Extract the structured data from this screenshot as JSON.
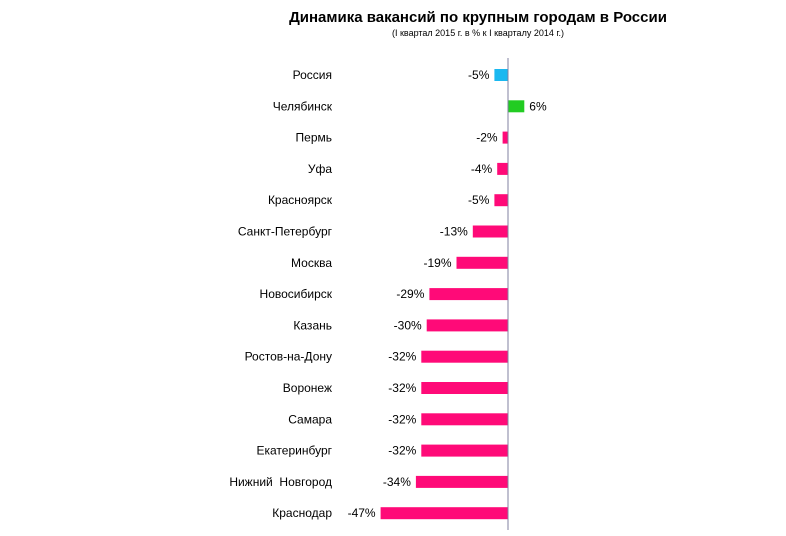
{
  "chart_data": {
    "type": "bar",
    "orientation": "horizontal",
    "title": "Динамика вакансий по крупным городам в России",
    "subtitle": "(I квартал 2015 г. в % к I кварталу 2014 г.)",
    "categories": [
      "Россия",
      "Челябинск",
      "Пермь",
      "Уфа",
      "Красноярск",
      "Санкт-Петербург",
      "Москва",
      "Новосибирск",
      "Казань",
      "Ростов-на-Дону",
      "Воронеж",
      "Самара",
      "Екатеринбург",
      "Нижний  Новгород",
      "Краснодар"
    ],
    "values": [
      -5,
      6,
      -2,
      -4,
      -5,
      -13,
      -19,
      -29,
      -30,
      -32,
      -32,
      -32,
      -32,
      -34,
      -47
    ],
    "data_labels": [
      "-5%",
      "6%",
      "-2%",
      "-4%",
      "-5%",
      "-13%",
      "-19%",
      "-29%",
      "-30%",
      "-32%",
      "-32%",
      "-32%",
      "-32%",
      "-34%",
      "-47%"
    ],
    "bar_colors": [
      "#1ab8f0",
      "#22cc22",
      "#ff0a78",
      "#ff0a78",
      "#ff0a78",
      "#ff0a78",
      "#ff0a78",
      "#ff0a78",
      "#ff0a78",
      "#ff0a78",
      "#ff0a78",
      "#ff0a78",
      "#ff0a78",
      "#ff0a78",
      "#ff0a78"
    ],
    "axis_line_color": "#8080a0",
    "grid": false,
    "legend": "none"
  }
}
